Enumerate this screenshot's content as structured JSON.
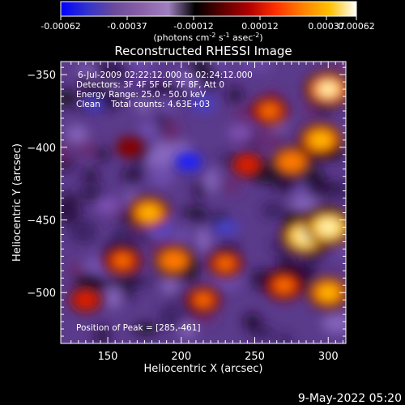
{
  "colorbar": {
    "ticks": [
      "-0.00062",
      "-0.00037",
      "-0.00012",
      "0.00012",
      "0.00037",
      "0.00062"
    ],
    "unit_label_prefix": "(photons cm",
    "unit_sup1": "-2",
    "unit_mid": " s",
    "unit_sup2": "-1",
    "unit_mid2": " asec",
    "unit_sup3": "-2",
    "unit_suffix": ")",
    "colors": [
      "#0000ff",
      "#3333cc",
      "#6a4a9a",
      "#8a60a8",
      "#a080c0",
      "#000000",
      "#5a0000",
      "#b00000",
      "#ff3000",
      "#ff8000",
      "#ffc000",
      "#ffffff"
    ]
  },
  "image": {
    "title": "Reconstructed RHESSI Image",
    "info_lines": [
      "6-Jul-2009 02:22:12.000 to 02:24:12.000",
      "Detectors: 3F 4F 5F 6F 7F 8F, Att 0",
      "Energy Range: 25.0 - 50.0 keV",
      "Clean    Total counts: 4.63E+03"
    ],
    "peak_label": "Position of Peak = [285,-461]"
  },
  "chart_data": {
    "type": "heatmap",
    "title": "Reconstructed RHESSI Image",
    "xlabel": "Heliocentric X (arcsec)",
    "ylabel": "Heliocentric Y (arcsec)",
    "xlim": [
      118,
      312
    ],
    "ylim": [
      -535,
      -341
    ],
    "x_ticks": [
      150,
      200,
      250,
      300
    ],
    "y_ticks": [
      -350,
      -400,
      -450,
      -500
    ],
    "x_tick_labels": [
      "150",
      "200",
      "250",
      "300"
    ],
    "y_tick_labels": [
      "−350",
      "−400",
      "−450",
      "−500"
    ],
    "colorbar_range": [
      -0.00062,
      0.00062
    ],
    "peak": [
      285,
      -461
    ],
    "hotspots": [
      {
        "x": 300,
        "y": -360,
        "value": 0.00055
      },
      {
        "x": 295,
        "y": -395,
        "value": 0.0005
      },
      {
        "x": 285,
        "y": -461,
        "value": 0.00062
      },
      {
        "x": 300,
        "y": -455,
        "value": 0.00058
      },
      {
        "x": 275,
        "y": -410,
        "value": 0.0004
      },
      {
        "x": 260,
        "y": -375,
        "value": 0.00035
      },
      {
        "x": 178,
        "y": -445,
        "value": 0.00045
      },
      {
        "x": 160,
        "y": -478,
        "value": 0.00035
      },
      {
        "x": 195,
        "y": -478,
        "value": 0.0004
      },
      {
        "x": 230,
        "y": -480,
        "value": 0.0003
      },
      {
        "x": 270,
        "y": -495,
        "value": 0.00038
      },
      {
        "x": 300,
        "y": -500,
        "value": 0.00045
      },
      {
        "x": 215,
        "y": -505,
        "value": 0.0003
      },
      {
        "x": 135,
        "y": -505,
        "value": 0.00025
      },
      {
        "x": 245,
        "y": -412,
        "value": 0.00025
      },
      {
        "x": 165,
        "y": -400,
        "value": 0.00015
      }
    ],
    "coldspots": [
      {
        "x": 205,
        "y": -410,
        "value": -0.00062
      },
      {
        "x": 140,
        "y": -370,
        "value": -0.00045
      },
      {
        "x": 215,
        "y": -370,
        "value": -0.0004
      },
      {
        "x": 185,
        "y": -455,
        "value": -0.0004
      },
      {
        "x": 230,
        "y": -455,
        "value": -0.00035
      },
      {
        "x": 240,
        "y": -390,
        "value": -0.0003
      },
      {
        "x": 150,
        "y": -440,
        "value": -0.0003
      }
    ]
  },
  "footer": {
    "timestamp": "9-May-2022 05:20"
  }
}
